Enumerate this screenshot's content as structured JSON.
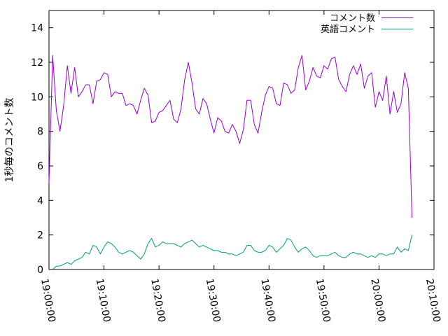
{
  "chart_data": {
    "type": "line",
    "title": "",
    "xlabel": "",
    "ylabel": "1秒毎のコメント数",
    "xlim": [
      "19:00:00",
      "20:10:00"
    ],
    "ylim": [
      0,
      15
    ],
    "x_ticks": [
      "19:00:00",
      "19:10:00",
      "19:20:00",
      "19:30:00",
      "19:40:00",
      "19:50:00",
      "20:00:00",
      "20:10:00"
    ],
    "y_ticks": [
      0,
      2,
      4,
      6,
      8,
      10,
      12,
      14
    ],
    "grid": false,
    "legend_position": "top-right",
    "x_start": "19:00:00",
    "x_step_seconds": 40,
    "series": [
      {
        "name": "コメント数",
        "color": "#9400d3",
        "values": [
          5.0,
          12.4,
          9.2,
          8.0,
          9.5,
          11.8,
          10.2,
          11.7,
          10.0,
          10.3,
          10.7,
          10.7,
          9.6,
          10.9,
          11.0,
          11.4,
          11.3,
          10.0,
          10.3,
          10.2,
          10.2,
          9.5,
          9.6,
          9.5,
          9.0,
          9.8,
          10.5,
          10.1,
          8.5,
          8.6,
          9.1,
          9.2,
          9.5,
          9.8,
          8.7,
          8.5,
          9.3,
          11.0,
          12.0,
          10.8,
          9.3,
          9.0,
          9.9,
          9.6,
          8.7,
          7.9,
          8.8,
          8.6,
          8.0,
          7.9,
          8.4,
          8.0,
          7.3,
          8.1,
          9.8,
          9.8,
          8.4,
          7.9,
          9.1,
          10.1,
          10.6,
          10.5,
          9.6,
          9.5,
          10.8,
          10.7,
          10.2,
          10.4,
          11.7,
          12.4,
          10.4,
          10.9,
          11.7,
          11.2,
          11.1,
          11.8,
          11.6,
          12.2,
          12.3,
          11.0,
          10.6,
          10.3,
          11.3,
          11.8,
          11.3,
          11.9,
          10.5,
          11.2,
          11.4,
          9.4,
          10.3,
          9.8,
          11.2,
          9.0,
          10.3,
          9.1,
          9.6,
          11.4,
          10.5,
          3.0
        ]
      },
      {
        "name": "英語コメント",
        "color": "#009e73",
        "values": [
          null,
          0.0,
          0.2,
          0.2,
          0.3,
          0.4,
          0.3,
          0.5,
          0.6,
          0.7,
          1.0,
          0.9,
          1.4,
          1.3,
          0.9,
          1.3,
          1.6,
          1.5,
          1.3,
          1.0,
          0.9,
          1.0,
          1.1,
          1.0,
          0.8,
          0.6,
          0.9,
          1.5,
          1.8,
          1.3,
          1.4,
          1.6,
          1.5,
          1.5,
          1.5,
          1.4,
          1.3,
          1.5,
          1.6,
          1.7,
          1.5,
          1.3,
          1.4,
          1.3,
          1.2,
          1.1,
          1.1,
          1.0,
          1.0,
          0.9,
          0.9,
          0.8,
          0.9,
          1.0,
          1.4,
          1.4,
          1.1,
          1.0,
          1.0,
          1.1,
          1.4,
          1.3,
          1.0,
          1.2,
          1.4,
          1.8,
          1.7,
          1.3,
          1.0,
          1.2,
          1.3,
          1.1,
          0.8,
          0.7,
          0.8,
          0.8,
          0.8,
          0.9,
          1.0,
          0.8,
          0.7,
          0.7,
          0.9,
          1.0,
          0.9,
          0.9,
          0.8,
          0.7,
          0.8,
          0.7,
          0.9,
          0.9,
          0.8,
          0.9,
          0.9,
          1.3,
          1.0,
          1.2,
          1.1,
          2.0
        ]
      }
    ]
  }
}
